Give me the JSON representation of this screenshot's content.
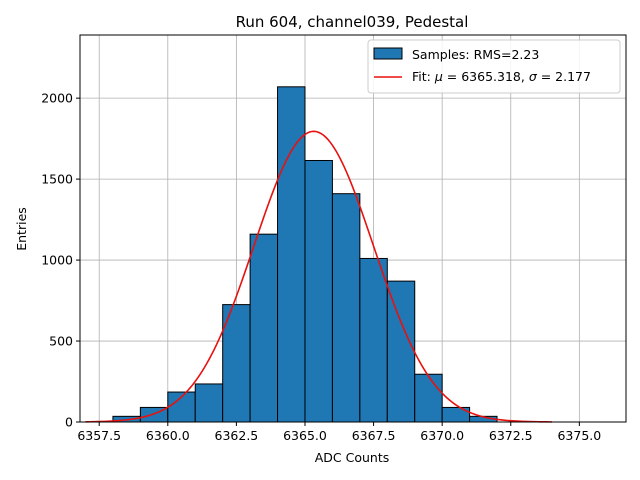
{
  "chart_data": {
    "type": "bar",
    "title": "Run 604, channel039, Pedestal",
    "xlabel": "ADC Counts",
    "ylabel": "Entries",
    "xlim": [
      6356.8,
      6376.7
    ],
    "ylim": [
      0,
      2390
    ],
    "grid": true,
    "xticks": [
      6357.5,
      6360.0,
      6362.5,
      6365.0,
      6367.5,
      6370.0,
      6372.5,
      6375.0
    ],
    "xtick_labels": [
      "6357.5",
      "6360.0",
      "6362.5",
      "6365.0",
      "6367.5",
      "6370.0",
      "6372.5",
      "6375.0"
    ],
    "yticks": [
      0,
      500,
      1000,
      1500,
      2000
    ],
    "ytick_labels": [
      "0",
      "500",
      "1000",
      "1500",
      "2000"
    ],
    "bar_color": "#1f77b4",
    "fit_color": "#e8110f",
    "series": [
      {
        "name": "Samples: RMS=2.23",
        "kind": "histogram",
        "bins": [
          {
            "lo": 6358,
            "hi": 6359,
            "count": 35
          },
          {
            "lo": 6359,
            "hi": 6360,
            "count": 90
          },
          {
            "lo": 6360,
            "hi": 6361,
            "count": 185
          },
          {
            "lo": 6361,
            "hi": 6362,
            "count": 235
          },
          {
            "lo": 6362,
            "hi": 6363,
            "count": 725
          },
          {
            "lo": 6363,
            "hi": 6364,
            "count": 1160
          },
          {
            "lo": 6364,
            "hi": 6365,
            "count": 2070
          },
          {
            "lo": 6365,
            "hi": 6366,
            "count": 1615
          },
          {
            "lo": 6366,
            "hi": 6367,
            "count": 1410
          },
          {
            "lo": 6367,
            "hi": 6368,
            "count": 1010
          },
          {
            "lo": 6368,
            "hi": 6369,
            "count": 870
          },
          {
            "lo": 6369,
            "hi": 6370,
            "count": 295
          },
          {
            "lo": 6370,
            "hi": 6371,
            "count": 90
          },
          {
            "lo": 6371,
            "hi": 6372,
            "count": 35
          }
        ]
      },
      {
        "name": "Fit: μ = 6365.318, σ = 2.177",
        "kind": "gaussian_fit",
        "mu": 6365.318,
        "sigma": 2.177,
        "amplitude": 1795,
        "x_range": [
          6357.0,
          6374.0
        ]
      }
    ],
    "legend": {
      "position": "top-right",
      "hist_label": "Samples: RMS=2.23",
      "fit_prefix": "Fit: ",
      "fit_mu_sym": "μ",
      "fit_mu_val": " = 6365.318, ",
      "fit_sigma_sym": "σ",
      "fit_sigma_val": " = 2.177"
    }
  }
}
